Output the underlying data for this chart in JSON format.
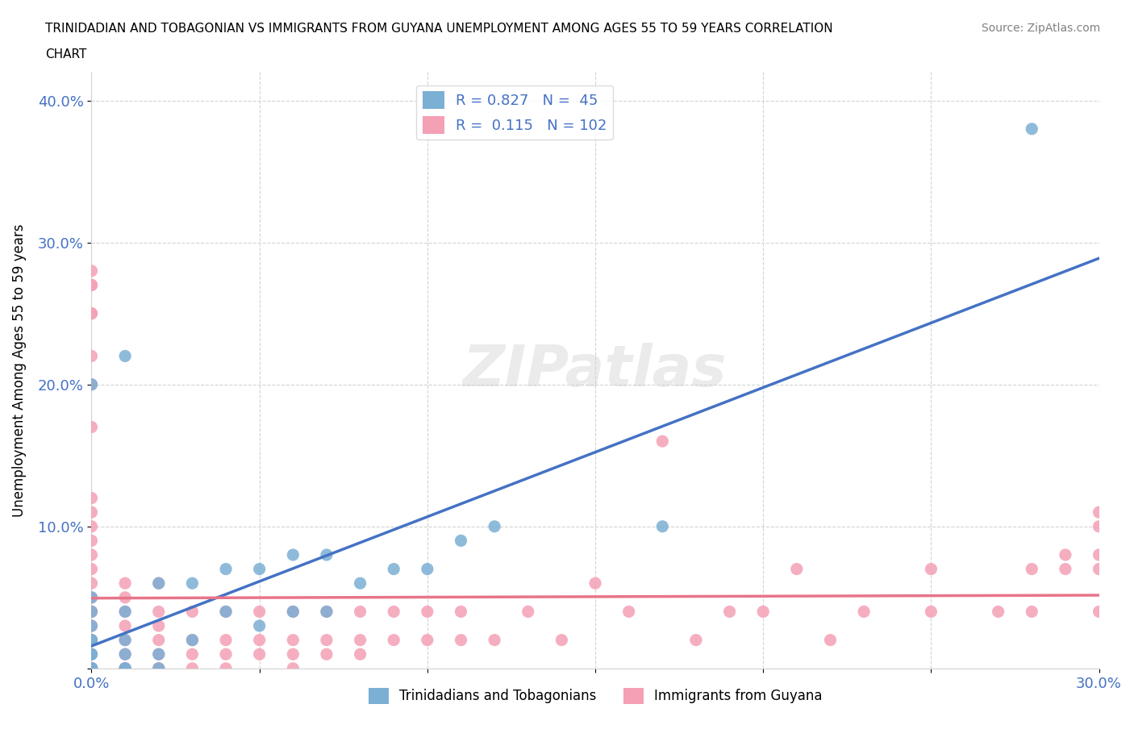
{
  "title_line1": "TRINIDADIAN AND TOBAGONIAN VS IMMIGRANTS FROM GUYANA UNEMPLOYMENT AMONG AGES 55 TO 59 YEARS CORRELATION",
  "title_line2": "CHART",
  "source": "Source: ZipAtlas.com",
  "xlabel": "",
  "ylabel": "Unemployment Among Ages 55 to 59 years",
  "xlim": [
    0.0,
    0.3
  ],
  "ylim": [
    0.0,
    0.42
  ],
  "xticks": [
    0.0,
    0.05,
    0.1,
    0.15,
    0.2,
    0.25,
    0.3
  ],
  "xticklabels": [
    "0.0%",
    "",
    "",
    "",
    "",
    "",
    "30.0%"
  ],
  "yticks": [
    0.0,
    0.1,
    0.2,
    0.3,
    0.4
  ],
  "yticklabels": [
    "",
    "10.0%",
    "20.0%",
    "30.0%",
    "40.0%"
  ],
  "blue_R": 0.827,
  "blue_N": 45,
  "pink_R": 0.115,
  "pink_N": 102,
  "blue_color": "#7bafd4",
  "pink_color": "#f4a0b5",
  "blue_line_color": "#4472c4",
  "pink_line_color": "#e8748a",
  "watermark": "ZIPatlas",
  "blue_scatter_x": [
    0.0,
    0.0,
    0.0,
    0.0,
    0.0,
    0.0,
    0.0,
    0.0,
    0.0,
    0.0,
    0.0,
    0.0,
    0.0,
    0.0,
    0.0,
    0.0,
    0.0,
    0.0,
    0.0,
    0.01,
    0.01,
    0.01,
    0.01,
    0.01,
    0.01,
    0.02,
    0.02,
    0.02,
    0.03,
    0.03,
    0.04,
    0.04,
    0.05,
    0.05,
    0.06,
    0.06,
    0.07,
    0.07,
    0.08,
    0.09,
    0.1,
    0.11,
    0.12,
    0.17,
    0.28
  ],
  "blue_scatter_y": [
    0.0,
    0.0,
    0.0,
    0.0,
    0.0,
    0.0,
    0.0,
    0.0,
    0.0,
    0.0,
    0.0,
    0.01,
    0.01,
    0.02,
    0.02,
    0.03,
    0.04,
    0.05,
    0.2,
    0.0,
    0.0,
    0.01,
    0.02,
    0.04,
    0.22,
    0.0,
    0.01,
    0.06,
    0.02,
    0.06,
    0.04,
    0.07,
    0.03,
    0.07,
    0.04,
    0.08,
    0.04,
    0.08,
    0.06,
    0.07,
    0.07,
    0.09,
    0.1,
    0.1,
    0.38
  ],
  "pink_scatter_x": [
    0.0,
    0.0,
    0.0,
    0.0,
    0.0,
    0.0,
    0.0,
    0.0,
    0.0,
    0.0,
    0.0,
    0.0,
    0.0,
    0.0,
    0.0,
    0.0,
    0.0,
    0.0,
    0.0,
    0.0,
    0.0,
    0.0,
    0.0,
    0.0,
    0.0,
    0.0,
    0.0,
    0.0,
    0.0,
    0.0,
    0.0,
    0.0,
    0.0,
    0.0,
    0.0,
    0.01,
    0.01,
    0.01,
    0.01,
    0.01,
    0.01,
    0.01,
    0.01,
    0.01,
    0.02,
    0.02,
    0.02,
    0.02,
    0.02,
    0.02,
    0.02,
    0.03,
    0.03,
    0.03,
    0.03,
    0.04,
    0.04,
    0.04,
    0.04,
    0.05,
    0.05,
    0.05,
    0.06,
    0.06,
    0.06,
    0.06,
    0.07,
    0.07,
    0.07,
    0.08,
    0.08,
    0.08,
    0.09,
    0.09,
    0.1,
    0.1,
    0.11,
    0.11,
    0.12,
    0.13,
    0.14,
    0.15,
    0.16,
    0.17,
    0.18,
    0.19,
    0.2,
    0.21,
    0.22,
    0.23,
    0.25,
    0.25,
    0.27,
    0.28,
    0.28,
    0.29,
    0.29,
    0.3,
    0.3,
    0.3,
    0.3,
    0.3
  ],
  "pink_scatter_y": [
    0.0,
    0.0,
    0.0,
    0.0,
    0.0,
    0.0,
    0.0,
    0.0,
    0.0,
    0.0,
    0.0,
    0.0,
    0.02,
    0.03,
    0.04,
    0.05,
    0.06,
    0.07,
    0.08,
    0.09,
    0.1,
    0.11,
    0.12,
    0.17,
    0.2,
    0.22,
    0.25,
    0.25,
    0.27,
    0.27,
    0.28,
    0.0,
    0.01,
    0.02,
    0.04,
    0.0,
    0.0,
    0.0,
    0.01,
    0.02,
    0.03,
    0.04,
    0.05,
    0.06,
    0.0,
    0.0,
    0.01,
    0.02,
    0.03,
    0.04,
    0.06,
    0.0,
    0.01,
    0.02,
    0.04,
    0.0,
    0.01,
    0.02,
    0.04,
    0.01,
    0.02,
    0.04,
    0.0,
    0.01,
    0.02,
    0.04,
    0.01,
    0.02,
    0.04,
    0.01,
    0.02,
    0.04,
    0.02,
    0.04,
    0.02,
    0.04,
    0.02,
    0.04,
    0.02,
    0.04,
    0.02,
    0.06,
    0.04,
    0.16,
    0.02,
    0.04,
    0.04,
    0.07,
    0.02,
    0.04,
    0.04,
    0.07,
    0.04,
    0.07,
    0.04,
    0.07,
    0.08,
    0.04,
    0.07,
    0.08,
    0.1,
    0.11
  ]
}
